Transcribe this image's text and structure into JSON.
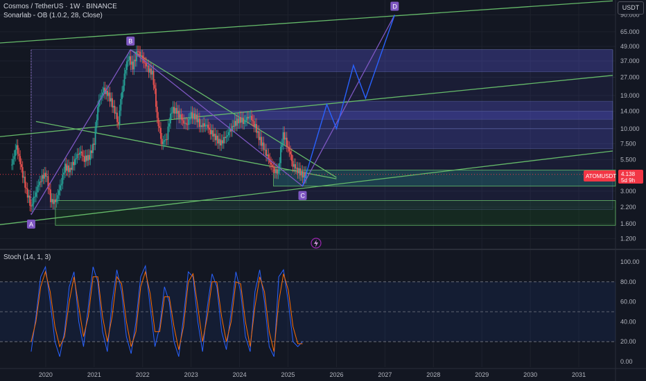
{
  "header": {
    "symbol_line": "Cosmos / TetherUS · 1W · BINANCE",
    "indicator_line": "Sonarlab - OB (1.0.2, 28, Close)",
    "currency_button": "USDT"
  },
  "price_label": {
    "ticker": "ATOMUSDT",
    "price": "4.138",
    "countdown": "5d 9h",
    "color": "#f23645"
  },
  "oscillator": {
    "title": "Stoch (14, 1, 3)",
    "k_color": "#2962ff",
    "d_color": "#ff6d00",
    "overbought": 80,
    "oversold": 20
  },
  "colors": {
    "background": "#131722",
    "up_candle": "#26a69a",
    "down_candle": "#ef5350",
    "channel_line": "#66bb6a",
    "pattern_line": "#7e57c2",
    "projection_line": "#2962ff",
    "zone_fill": "#5c5ce0"
  },
  "chart_data": [
    {
      "type": "line",
      "title": "Cosmos / TetherUS · 1W · BINANCE",
      "y_scale": "log",
      "ylim": [
        1.0,
        120
      ],
      "x_ticks": [
        "2020",
        "2021",
        "2022",
        "2023",
        "2024",
        "2025",
        "2026",
        "2027",
        "2028",
        "2029",
        "2030",
        "2031"
      ],
      "y_ticks": [
        "90.000",
        "65.000",
        "49.000",
        "37.000",
        "27.000",
        "19.000",
        "14.000",
        "10.000",
        "7.500",
        "5.500",
        "3.000",
        "2.200",
        "1.600",
        "1.200"
      ],
      "y_tick_values": [
        90,
        65,
        49,
        37,
        27,
        19,
        14,
        10,
        7.5,
        5.5,
        3.0,
        2.2,
        1.6,
        1.2
      ],
      "pattern_points": [
        {
          "label": "A",
          "x": 2019.7,
          "y": 1.9
        },
        {
          "label": "B",
          "x": 2021.75,
          "y": 46
        },
        {
          "label": "C",
          "x": 2025.3,
          "y": 3.3
        },
        {
          "label": "D",
          "x": 2027.2,
          "y": 90
        }
      ],
      "series": [
        {
          "x": [
            2019.3,
            2019.4,
            2019.5,
            2019.6,
            2019.7,
            2019.8,
            2019.9,
            2020.0,
            2020.1,
            2020.2,
            2020.3,
            2020.4,
            2020.5,
            2020.6,
            2020.7,
            2020.8,
            2020.9,
            2021.0,
            2021.1,
            2021.2,
            2021.3,
            2021.4,
            2021.5,
            2021.6,
            2021.7,
            2021.8,
            2021.9,
            2022.0,
            2022.1,
            2022.2,
            2022.3,
            2022.4,
            2022.5,
            2022.6,
            2022.7,
            2022.8,
            2022.9,
            2023.0,
            2023.1,
            2023.2,
            2023.3,
            2023.4,
            2023.5,
            2023.6,
            2023.7,
            2023.8,
            2023.9,
            2024.0,
            2024.1,
            2024.2,
            2024.3,
            2024.4,
            2024.5,
            2024.6,
            2024.7,
            2024.8,
            2024.9,
            2025.0,
            2025.1,
            2025.2,
            2025.3
          ],
          "y": [
            5.0,
            7.0,
            4.5,
            3.0,
            2.2,
            3.0,
            3.8,
            4.2,
            2.5,
            2.4,
            3.2,
            4.8,
            4.5,
            5.5,
            6.5,
            5.6,
            5.8,
            7.5,
            17,
            21,
            19,
            15,
            11,
            24,
            40,
            33,
            45,
            38,
            32,
            29,
            12,
            7.5,
            8.5,
            14.5,
            14,
            12,
            10.5,
            13,
            12.5,
            10.5,
            11,
            9.5,
            8.5,
            7.5,
            8.3,
            9.5,
            11,
            12,
            11.5,
            13,
            11,
            8.5,
            6.8,
            5.5,
            4.5,
            4.3,
            9.0,
            7.0,
            5.0,
            4.5,
            4.1
          ]
        }
      ]
    },
    {
      "type": "line",
      "title": "Stoch (14, 1, 3)",
      "ylim": [
        0,
        100
      ],
      "y_ticks": [
        "100.00",
        "80.00",
        "60.00",
        "40.00",
        "20.00",
        "0.00"
      ],
      "y_tick_values": [
        100,
        80,
        60,
        40,
        20,
        0
      ],
      "series": [
        {
          "name": "%K",
          "values": [
            10,
            45,
            85,
            95,
            60,
            20,
            5,
            30,
            75,
            90,
            40,
            15,
            55,
            95,
            80,
            30,
            10,
            60,
            92,
            70,
            25,
            8,
            40,
            85,
            96,
            55,
            15,
            35,
            75,
            60,
            20,
            5,
            45,
            90,
            85,
            40,
            10,
            55,
            88,
            75,
            30,
            12,
            50,
            90,
            70,
            25,
            10,
            70,
            92,
            60,
            15,
            5,
            85,
            92,
            60,
            20,
            15,
            20
          ]
        },
        {
          "name": "%D",
          "values": [
            20,
            40,
            75,
            90,
            70,
            35,
            15,
            25,
            60,
            85,
            55,
            25,
            45,
            85,
            85,
            45,
            20,
            45,
            85,
            78,
            40,
            15,
            30,
            75,
            90,
            68,
            30,
            30,
            65,
            65,
            35,
            12,
            35,
            80,
            88,
            55,
            20,
            45,
            80,
            80,
            45,
            20,
            40,
            80,
            78,
            40,
            15,
            55,
            85,
            70,
            30,
            10,
            60,
            88,
            72,
            35,
            18,
            18
          ]
        }
      ]
    }
  ]
}
